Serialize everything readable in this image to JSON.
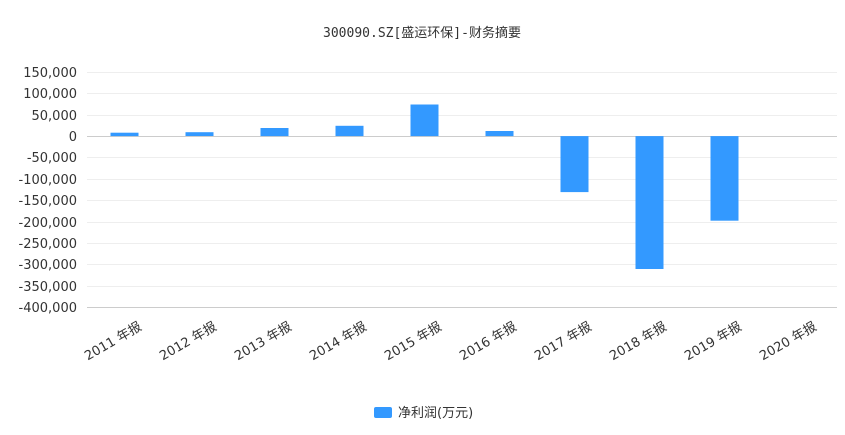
{
  "chart_data": {
    "type": "bar",
    "title": "300090.SZ[盛运环保]-财务摘要",
    "categories": [
      "2011 年报",
      "2012 年报",
      "2013 年报",
      "2014 年报",
      "2015 年报",
      "2016 年报",
      "2017 年报",
      "2018 年报",
      "2019 年报",
      "2020 年报"
    ],
    "series": [
      {
        "name": "净利润(万元)",
        "values": [
          8000,
          9000,
          19000,
          24000,
          74000,
          12000,
          -131000,
          -311000,
          -198000,
          null
        ],
        "color": "#3399ff"
      }
    ],
    "yticks": [
      "150,000",
      "100,000",
      "50,000",
      "0",
      "-50,000",
      "-100,000",
      "-150,000",
      "-200,000",
      "-250,000",
      "-300,000",
      "-350,000",
      "-400,000"
    ],
    "ylim": [
      -400000,
      150000
    ],
    "xlabel": "",
    "ylabel": "",
    "grid": true,
    "legend": "bottom-center"
  }
}
